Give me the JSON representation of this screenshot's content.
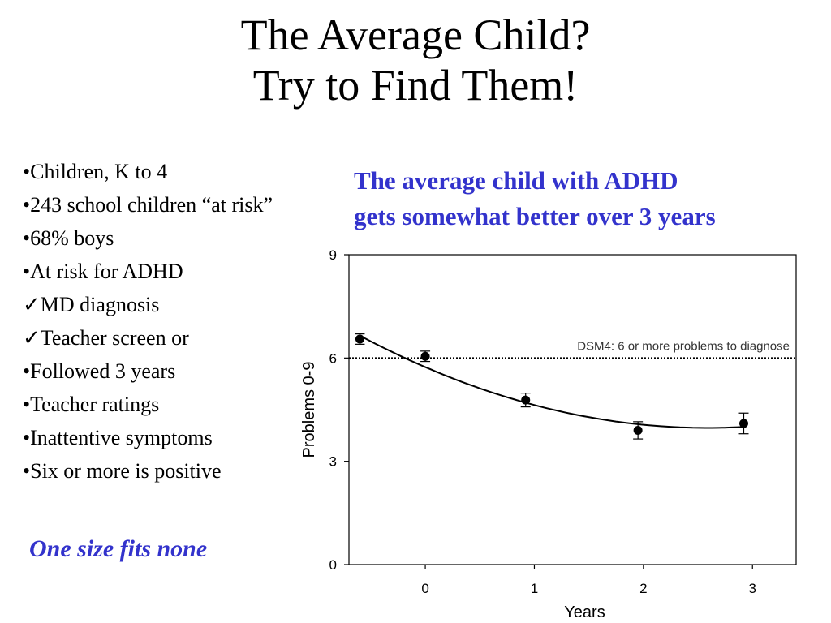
{
  "title": {
    "line1": "The Average Child?",
    "line2": "Try to Find Them!"
  },
  "bullets": [
    "•Children, K to 4",
    "•243 school children “at risk”",
    "•68% boys",
    "•At risk for ADHD",
    "✓MD diagnosis",
    "✓Teacher screen or",
    "•Followed 3 years",
    "•Teacher ratings",
    "•Inattentive symptoms",
    "•Six or more is positive"
  ],
  "tagline": "One size fits none",
  "headline": {
    "line1": "The average child with ADHD",
    "line2": "gets somewhat better over 3 years"
  },
  "chart_data": {
    "type": "scatter",
    "xlabel": "Years",
    "ylabel": "Problems 0-9",
    "xlim": [
      -0.7,
      3.4
    ],
    "ylim": [
      0,
      9
    ],
    "x_ticks": [
      0,
      1,
      2,
      3
    ],
    "y_ticks": [
      0,
      3,
      6,
      9
    ],
    "grid": false,
    "series": [
      {
        "points": [
          {
            "x": -0.6,
            "y": 6.55,
            "err": 0.15
          },
          {
            "x": 0.0,
            "y": 6.05,
            "err": 0.15
          },
          {
            "x": 0.92,
            "y": 4.78,
            "err": 0.2
          },
          {
            "x": 1.95,
            "y": 3.9,
            "err": 0.25
          },
          {
            "x": 2.92,
            "y": 4.1,
            "err": 0.3
          }
        ]
      }
    ],
    "trend_curve": {
      "type": "quadratic",
      "x_from": -0.6,
      "x_to": 2.92,
      "points": [
        {
          "x": -0.6,
          "y": 6.65
        },
        {
          "x": 1.17,
          "y": 4.5
        },
        {
          "x": 2.92,
          "y": 4.0
        }
      ]
    },
    "reference_line": {
      "y": 6,
      "style": "dotted",
      "label": "DSM4: 6 or more problems to diagnose"
    }
  }
}
